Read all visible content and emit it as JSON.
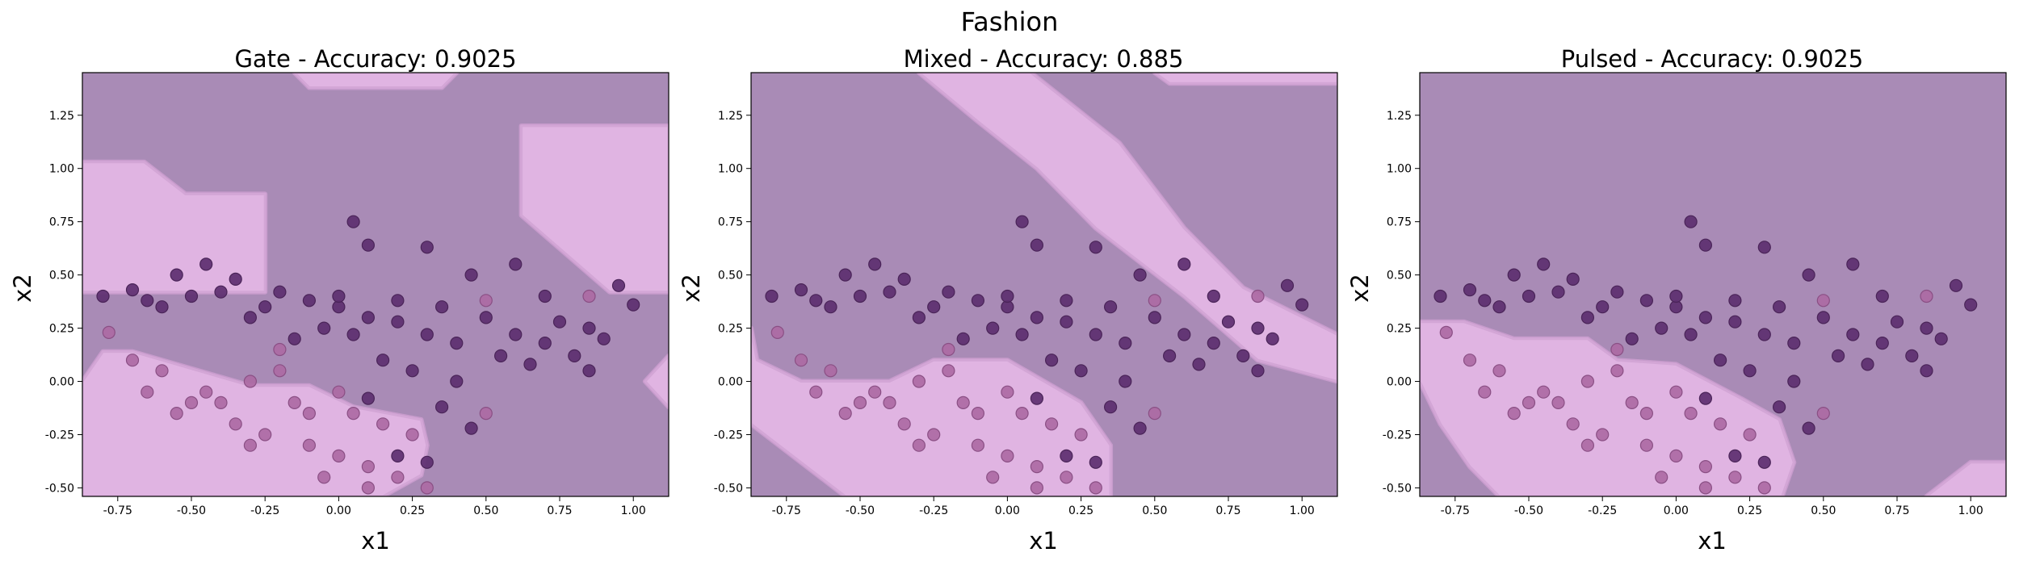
{
  "figure": {
    "title": "Fashion"
  },
  "colors": {
    "region_class0": "#a98bb6",
    "region_class1": "#e0b4e2",
    "point_class0": "#5d2f70",
    "point_class1": "#ad6aa4",
    "point_edge0": "#4a2458",
    "point_edge1": "#8a4f84"
  },
  "chart_data": [
    {
      "type": "scatter",
      "title": "Gate - Accuracy: 0.9025",
      "xlabel": "x1",
      "ylabel": "x2",
      "xlim": [
        -0.87,
        1.12
      ],
      "ylim": [
        -0.54,
        1.45
      ],
      "xticks": [
        "-0.75",
        "-0.50",
        "-0.25",
        "0.00",
        "0.25",
        "0.50",
        "0.75",
        "1.00"
      ],
      "yticks": [
        "-0.50",
        "-0.25",
        "0.00",
        "0.25",
        "0.50",
        "0.75",
        "1.00",
        "1.25"
      ],
      "background_class": 0,
      "decision_regions_class1": [
        [
          [
            -0.87,
            1.03
          ],
          [
            -0.66,
            1.03
          ],
          [
            -0.52,
            0.88
          ],
          [
            -0.25,
            0.88
          ],
          [
            -0.25,
            0.42
          ],
          [
            -0.87,
            0.42
          ]
        ],
        [
          [
            -0.87,
            0.0
          ],
          [
            -0.8,
            0.14
          ],
          [
            -0.7,
            0.14
          ],
          [
            -0.3,
            -0.02
          ],
          [
            -0.1,
            -0.02
          ],
          [
            0.05,
            -0.12
          ],
          [
            0.28,
            -0.18
          ],
          [
            0.3,
            -0.3
          ],
          [
            0.28,
            -0.44
          ],
          [
            0.15,
            -0.54
          ],
          [
            -0.87,
            -0.54
          ]
        ],
        [
          [
            0.62,
            1.2
          ],
          [
            0.75,
            1.2
          ],
          [
            1.12,
            1.2
          ],
          [
            1.12,
            0.42
          ],
          [
            0.92,
            0.42
          ],
          [
            0.62,
            0.78
          ]
        ],
        [
          [
            1.04,
            0.0
          ],
          [
            1.12,
            -0.12
          ],
          [
            1.12,
            0.12
          ]
        ],
        [
          [
            -0.15,
            1.45
          ],
          [
            0.4,
            1.45
          ],
          [
            0.35,
            1.38
          ],
          [
            -0.1,
            1.38
          ]
        ]
      ]
    },
    {
      "type": "scatter",
      "title": "Mixed - Accuracy: 0.885",
      "xlabel": "x1",
      "ylabel": "x2",
      "xlim": [
        -0.87,
        1.12
      ],
      "ylim": [
        -0.54,
        1.45
      ],
      "xticks": [
        "-0.75",
        "-0.50",
        "-0.25",
        "0.00",
        "0.25",
        "0.50",
        "0.75",
        "1.00"
      ],
      "yticks": [
        "-0.50",
        "-0.25",
        "0.00",
        "0.25",
        "0.50",
        "0.75",
        "1.00",
        "1.25"
      ],
      "background_class": 0,
      "decision_regions_class1": [
        [
          [
            -0.3,
            1.45
          ],
          [
            0.08,
            1.45
          ],
          [
            0.38,
            1.12
          ],
          [
            0.6,
            0.72
          ],
          [
            0.8,
            0.44
          ],
          [
            1.12,
            0.22
          ],
          [
            1.12,
            0.0
          ],
          [
            0.85,
            0.1
          ],
          [
            0.6,
            0.4
          ],
          [
            0.3,
            0.72
          ],
          [
            0.1,
            1.0
          ],
          [
            -0.1,
            1.22
          ]
        ],
        [
          [
            -0.87,
            0.25
          ],
          [
            -0.85,
            0.1
          ],
          [
            -0.7,
            0.0
          ],
          [
            -0.4,
            0.0
          ],
          [
            -0.25,
            0.1
          ],
          [
            0.0,
            0.1
          ],
          [
            0.25,
            -0.1
          ],
          [
            0.35,
            -0.3
          ],
          [
            0.35,
            -0.54
          ],
          [
            -0.55,
            -0.54
          ],
          [
            -0.87,
            -0.2
          ]
        ],
        [
          [
            0.5,
            1.45
          ],
          [
            1.12,
            1.45
          ],
          [
            1.12,
            1.4
          ],
          [
            0.55,
            1.4
          ]
        ]
      ]
    },
    {
      "type": "scatter",
      "title": "Pulsed - Accuracy: 0.9025",
      "xlabel": "x1",
      "ylabel": "x2",
      "xlim": [
        -0.87,
        1.12
      ],
      "ylim": [
        -0.54,
        1.45
      ],
      "xticks": [
        "-0.75",
        "-0.50",
        "-0.25",
        "0.00",
        "0.25",
        "0.50",
        "0.75",
        "1.00"
      ],
      "yticks": [
        "-0.50",
        "-0.25",
        "0.00",
        "0.25",
        "0.50",
        "0.75",
        "1.00",
        "1.25"
      ],
      "background_class": 0,
      "decision_regions_class1": [
        [
          [
            -0.87,
            0.28
          ],
          [
            -0.72,
            0.28
          ],
          [
            -0.55,
            0.2
          ],
          [
            -0.3,
            0.2
          ],
          [
            -0.2,
            0.1
          ],
          [
            0.0,
            0.08
          ],
          [
            0.22,
            -0.08
          ],
          [
            0.35,
            -0.18
          ],
          [
            0.4,
            -0.38
          ],
          [
            0.36,
            -0.54
          ],
          [
            -0.6,
            -0.54
          ],
          [
            -0.7,
            -0.4
          ],
          [
            -0.8,
            -0.2
          ],
          [
            -0.87,
            0.0
          ]
        ],
        [
          [
            0.85,
            -0.54
          ],
          [
            1.12,
            -0.54
          ],
          [
            1.12,
            -0.38
          ],
          [
            1.0,
            -0.38
          ]
        ]
      ]
    }
  ],
  "points": [
    [
      -0.7,
      0.43,
      0
    ],
    [
      -0.55,
      0.5,
      0
    ],
    [
      -0.45,
      0.55,
      0
    ],
    [
      -0.35,
      0.48,
      0
    ],
    [
      -0.2,
      0.42,
      0
    ],
    [
      -0.1,
      0.38,
      0
    ],
    [
      0.0,
      0.35,
      0
    ],
    [
      0.1,
      0.3,
      0
    ],
    [
      0.2,
      0.28,
      0
    ],
    [
      0.3,
      0.22,
      0
    ],
    [
      0.4,
      0.18,
      0
    ],
    [
      0.5,
      0.3,
      0
    ],
    [
      0.6,
      0.22,
      0
    ],
    [
      0.7,
      0.18,
      0
    ],
    [
      0.8,
      0.12,
      0
    ],
    [
      0.9,
      0.2,
      0
    ],
    [
      1.0,
      0.36,
      0
    ],
    [
      0.05,
      0.75,
      0
    ],
    [
      0.1,
      0.64,
      0
    ],
    [
      0.3,
      0.63,
      0
    ],
    [
      0.6,
      0.55,
      0
    ],
    [
      0.45,
      0.5,
      0
    ],
    [
      -0.6,
      0.35,
      0
    ],
    [
      -0.3,
      0.3,
      0
    ],
    [
      0.15,
      0.1,
      0
    ],
    [
      0.25,
      0.05,
      0
    ],
    [
      0.4,
      0.0,
      0
    ],
    [
      0.35,
      -0.12,
      0
    ],
    [
      0.45,
      -0.22,
      0
    ],
    [
      0.2,
      -0.35,
      0
    ],
    [
      0.3,
      -0.38,
      0
    ],
    [
      0.1,
      -0.08,
      0
    ],
    [
      0.65,
      0.08,
      0
    ],
    [
      0.75,
      0.28,
      0
    ],
    [
      0.85,
      0.05,
      0
    ],
    [
      -0.15,
      0.2,
      0
    ],
    [
      -0.05,
      0.25,
      0
    ],
    [
      0.05,
      0.22,
      0
    ],
    [
      0.55,
      0.12,
      0
    ],
    [
      0.95,
      0.45,
      0
    ],
    [
      -0.8,
      0.4,
      0
    ],
    [
      -0.65,
      0.38,
      0
    ],
    [
      -0.5,
      0.4,
      0
    ],
    [
      -0.4,
      0.42,
      0
    ],
    [
      -0.25,
      0.35,
      0
    ],
    [
      0.0,
      0.4,
      0
    ],
    [
      0.2,
      0.38,
      0
    ],
    [
      0.35,
      0.35,
      0
    ],
    [
      0.7,
      0.4,
      0
    ],
    [
      0.85,
      0.25,
      0
    ],
    [
      -0.2,
      0.05,
      1
    ],
    [
      -0.3,
      0.0,
      1
    ],
    [
      -0.4,
      -0.1,
      1
    ],
    [
      -0.5,
      -0.1,
      1
    ],
    [
      -0.6,
      0.05,
      1
    ],
    [
      -0.7,
      0.1,
      1
    ],
    [
      -0.78,
      0.23,
      1
    ],
    [
      -0.35,
      -0.2,
      1
    ],
    [
      -0.25,
      -0.25,
      1
    ],
    [
      -0.1,
      -0.3,
      1
    ],
    [
      0.0,
      -0.35,
      1
    ],
    [
      0.1,
      -0.4,
      1
    ],
    [
      0.2,
      -0.45,
      1
    ],
    [
      -0.05,
      -0.45,
      1
    ],
    [
      0.05,
      -0.15,
      1
    ],
    [
      0.15,
      -0.2,
      1
    ],
    [
      0.25,
      -0.25,
      1
    ],
    [
      -0.15,
      -0.1,
      1
    ],
    [
      -0.45,
      -0.05,
      1
    ],
    [
      0.5,
      0.38,
      1
    ],
    [
      0.85,
      0.4,
      1
    ],
    [
      0.5,
      -0.15,
      1
    ],
    [
      -0.2,
      0.15,
      1
    ],
    [
      -0.3,
      -0.3,
      1
    ],
    [
      0.1,
      -0.5,
      1
    ],
    [
      -0.1,
      -0.15,
      1
    ],
    [
      -0.55,
      -0.15,
      1
    ],
    [
      0.3,
      -0.5,
      1
    ],
    [
      -0.65,
      -0.05,
      1
    ],
    [
      0.0,
      -0.05,
      1
    ]
  ]
}
